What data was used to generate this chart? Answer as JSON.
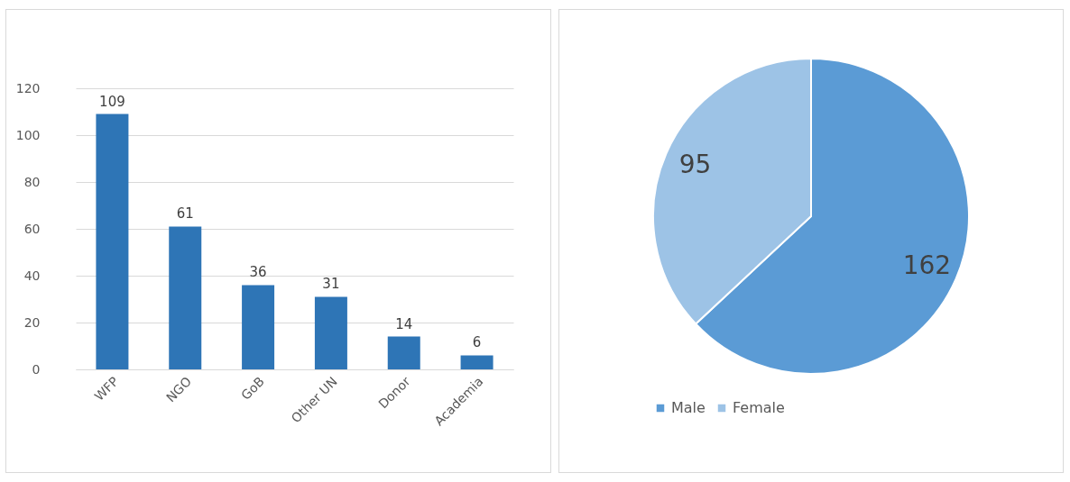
{
  "chart_data": [
    {
      "type": "bar",
      "categories": [
        "WFP",
        "NGO",
        "GoB",
        "Other UN",
        "Donor",
        "Academia"
      ],
      "values": [
        109,
        61,
        36,
        31,
        14,
        6
      ],
      "color": "#2e75b6",
      "ylim": [
        0,
        120
      ],
      "yticks": [
        0,
        20,
        40,
        60,
        80,
        100,
        120
      ],
      "grid": "y",
      "data_labels": true
    },
    {
      "type": "pie",
      "categories": [
        "Male",
        "Female"
      ],
      "values": [
        162,
        95
      ],
      "colors": [
        "#5b9bd5",
        "#9dc3e6"
      ],
      "data_labels": true,
      "legend": "bottom"
    }
  ]
}
